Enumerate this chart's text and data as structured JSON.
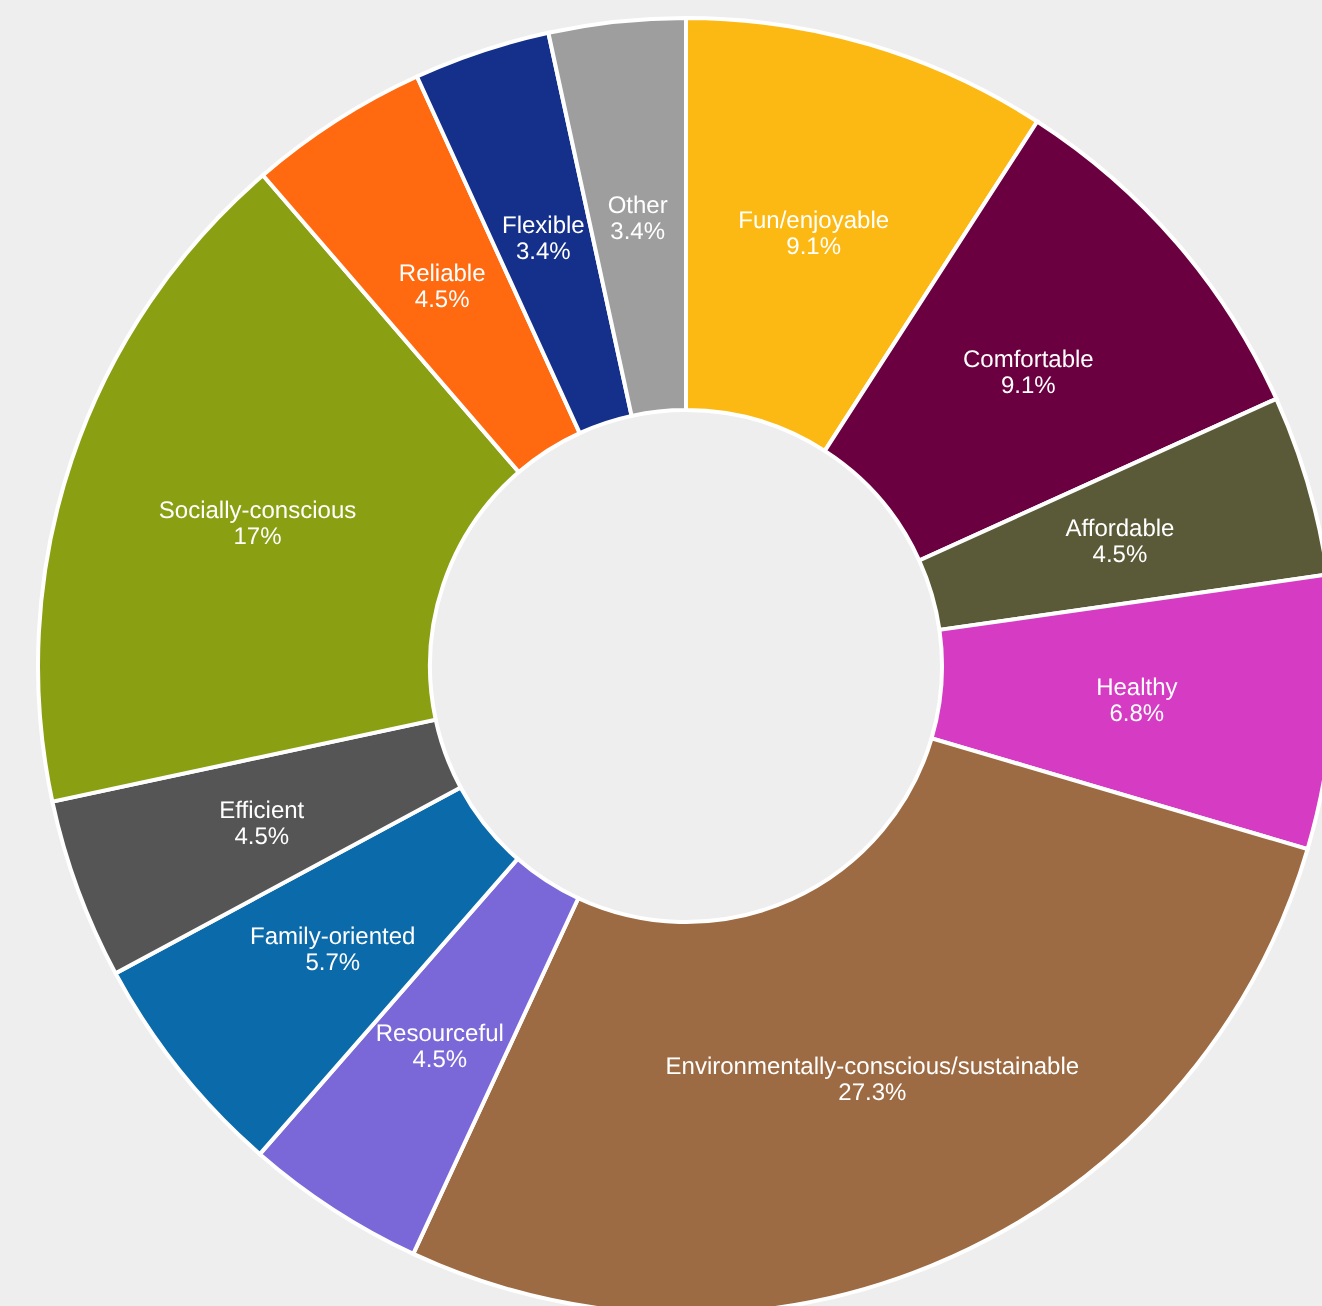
{
  "chart_data": {
    "type": "donut",
    "categories": [
      "Fun/enjoyable",
      "Comfortable",
      "Affordable",
      "Healthy",
      "Environmentally-conscious/sustainable",
      "Resourceful",
      "Family-oriented",
      "Efficient",
      "Socially-conscious",
      "Reliable",
      "Flexible",
      "Other"
    ],
    "values": [
      9.1,
      9.1,
      4.5,
      6.8,
      27.3,
      4.5,
      5.7,
      4.5,
      17,
      4.5,
      3.4,
      3.4
    ],
    "value_labels": [
      "9.1%",
      "9.1%",
      "4.5%",
      "6.8%",
      "27.3%",
      "4.5%",
      "5.7%",
      "4.5%",
      "17%",
      "4.5%",
      "3.4%",
      "3.4%"
    ],
    "colors": [
      "#fdb913",
      "#6b0040",
      "#5a5a38",
      "#d63bc4",
      "#9c6b43",
      "#7b68d8",
      "#0a6aaa",
      "#555555",
      "#8aa012",
      "#ff6a10",
      "#14308a",
      "#9e9e9e"
    ]
  }
}
